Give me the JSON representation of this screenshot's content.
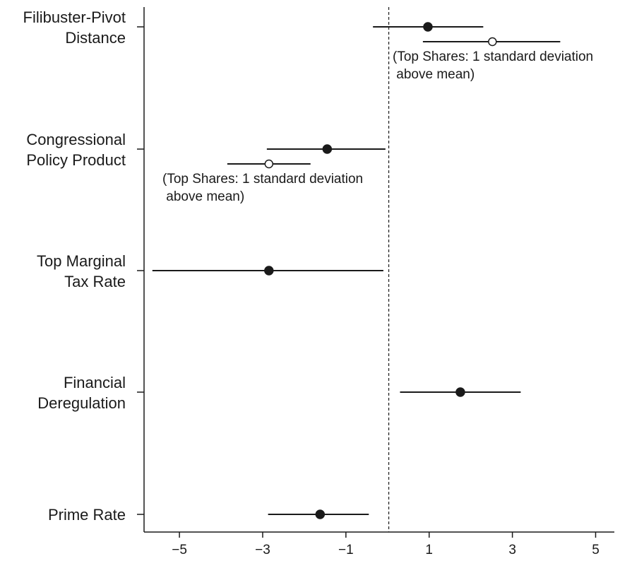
{
  "chart_data": {
    "type": "scatter",
    "subtype": "coefficient-plot-with-intervals",
    "xlim": [
      -5.85,
      5.45
    ],
    "xticks": [
      -5,
      -3,
      -1,
      1,
      3,
      5
    ],
    "xtick_labels": [
      "−5",
      "−3",
      "−1",
      "1",
      "3",
      "5"
    ],
    "reference_line_x": 0.03,
    "grid": false,
    "rows": [
      {
        "label": [
          "Filibuster-Pivot",
          "Distance"
        ],
        "estimates": [
          {
            "style": "filled",
            "value": 0.97,
            "lower": -0.35,
            "upper": 2.3
          },
          {
            "style": "open",
            "value": 2.52,
            "lower": 0.85,
            "upper": 4.15,
            "note": [
              "(Top Shares: 1 standard deviation",
              " above mean)"
            ]
          }
        ]
      },
      {
        "label": [
          "Congressional",
          "Policy Product"
        ],
        "estimates": [
          {
            "style": "filled",
            "value": -1.45,
            "lower": -2.9,
            "upper": -0.05
          },
          {
            "style": "open",
            "value": -2.85,
            "lower": -3.85,
            "upper": -1.85,
            "note": [
              "(Top Shares: 1 standard deviation",
              " above mean)"
            ]
          }
        ]
      },
      {
        "label": [
          "Top Marginal",
          "Tax Rate"
        ],
        "estimates": [
          {
            "style": "filled",
            "value": -2.85,
            "lower": -5.65,
            "upper": -0.1
          }
        ]
      },
      {
        "label": [
          "Financial",
          "Deregulation"
        ],
        "estimates": [
          {
            "style": "filled",
            "value": 1.75,
            "lower": 0.3,
            "upper": 3.2
          }
        ]
      },
      {
        "label": [
          "Prime Rate"
        ],
        "estimates": [
          {
            "style": "filled",
            "value": -1.62,
            "lower": -2.87,
            "upper": -0.45
          }
        ]
      }
    ]
  }
}
